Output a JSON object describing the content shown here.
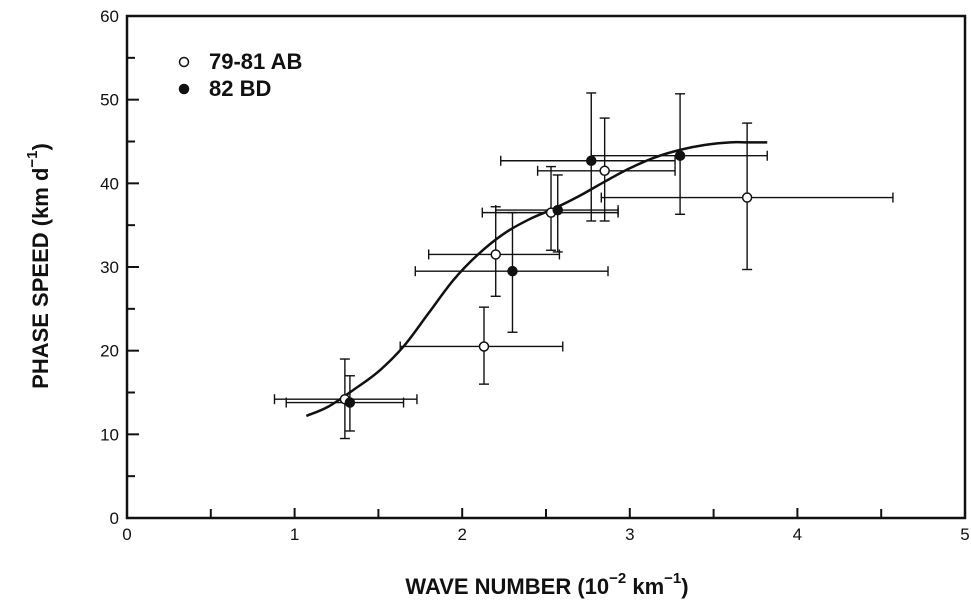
{
  "chart_data": {
    "type": "scatter",
    "title": "",
    "xlabel": {
      "text": "WAVE NUMBER (10",
      "sup1": "−2",
      "mid": " km",
      "sup2": "−1",
      "end": ")"
    },
    "ylabel": {
      "text": "PHASE SPEED (km d",
      "sup": "−1",
      "end": ")"
    },
    "xlim": [
      0,
      5
    ],
    "ylim": [
      0,
      60
    ],
    "x_ticks": [
      "0",
      "1",
      "2",
      "3",
      "4",
      "5"
    ],
    "y_ticks": [
      "0",
      "10",
      "20",
      "30",
      "40",
      "50",
      "60"
    ],
    "grid": false,
    "legend_position": "top-left",
    "series": [
      {
        "name": "79-81 AB",
        "marker": "open-circle",
        "points": [
          {
            "x": 1.3,
            "y": 14.2,
            "xerr": [
              0.88,
              1.73
            ],
            "yerr": [
              9.5,
              19.0
            ]
          },
          {
            "x": 2.13,
            "y": 20.5,
            "xerr": [
              1.63,
              2.6
            ],
            "yerr": [
              16.0,
              25.2
            ]
          },
          {
            "x": 2.2,
            "y": 31.5,
            "xerr": [
              1.8,
              2.58
            ],
            "yerr": [
              26.5,
              37.2
            ]
          },
          {
            "x": 2.53,
            "y": 36.5,
            "xerr": [
              2.12,
              2.93
            ],
            "yerr": [
              32.0,
              42.0
            ]
          },
          {
            "x": 2.85,
            "y": 41.5,
            "xerr": [
              2.45,
              3.27
            ],
            "yerr": [
              35.5,
              47.8
            ]
          },
          {
            "x": 3.7,
            "y": 38.3,
            "xerr": [
              2.83,
              4.57
            ],
            "yerr": [
              29.7,
              47.2
            ]
          }
        ]
      },
      {
        "name": "82 BD",
        "marker": "filled-circle",
        "points": [
          {
            "x": 1.33,
            "y": 13.8,
            "xerr": [
              0.95,
              1.65
            ],
            "yerr": [
              10.4,
              17.0
            ]
          },
          {
            "x": 2.3,
            "y": 29.5,
            "xerr": [
              1.72,
              2.87
            ],
            "yerr": [
              22.2,
              36.5
            ]
          },
          {
            "x": 2.57,
            "y": 36.8,
            "xerr": [
              2.2,
              2.93
            ],
            "yerr": [
              31.8,
              41.0
            ]
          },
          {
            "x": 2.77,
            "y": 42.7,
            "xerr": [
              2.23,
              3.27
            ],
            "yerr": [
              35.5,
              50.8
            ]
          },
          {
            "x": 3.3,
            "y": 43.3,
            "xerr": [
              2.77,
              3.82
            ],
            "yerr": [
              36.3,
              50.7
            ]
          }
        ]
      }
    ],
    "fit_curve": {
      "x": [
        1.07,
        1.2,
        1.35,
        1.5,
        1.65,
        1.8,
        1.95,
        2.1,
        2.25,
        2.4,
        2.55,
        2.7,
        2.85,
        3.0,
        3.15,
        3.3,
        3.45,
        3.6,
        3.7,
        3.82
      ],
      "y": [
        12.2,
        13.3,
        15.3,
        17.5,
        20.5,
        24.5,
        28.5,
        31.6,
        34.0,
        35.7,
        37.0,
        38.5,
        40.2,
        41.8,
        43.1,
        44.0,
        44.6,
        44.9,
        44.9,
        44.9
      ]
    }
  }
}
